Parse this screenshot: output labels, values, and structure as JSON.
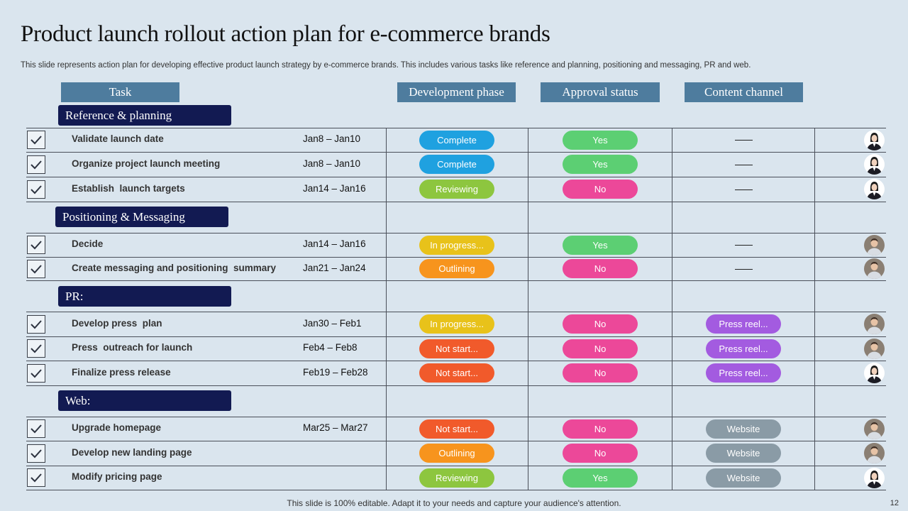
{
  "title": "Product launch rollout action plan for e-commerce brands",
  "subtitle": "This slide represents action plan for developing effective product launch strategy by e-commerce brands. This includes various tasks like reference and planning, positioning and messaging, PR and web.",
  "headers": {
    "task": "Task",
    "development_phase": "Development phase",
    "approval_status": "Approval status",
    "content_channel": "Content channel"
  },
  "sections": [
    {
      "label": "Reference & planning"
    },
    {
      "label": "Positioning & Messaging"
    },
    {
      "label": "PR:"
    },
    {
      "label": "Web:"
    }
  ],
  "tasks": [
    {
      "task": "Validate launch date",
      "dates": "Jan8 – Jan10",
      "phase": "Complete",
      "approval": "Yes",
      "channel": "",
      "avatar": "female"
    },
    {
      "task": "Organize project launch meeting",
      "dates": "Jan8 – Jan10",
      "phase": "Complete",
      "approval": "Yes",
      "channel": "",
      "avatar": "female"
    },
    {
      "task": "Establish  launch targets",
      "dates": "Jan14 – Jan16",
      "phase": "Reviewing",
      "approval": "No",
      "channel": "",
      "avatar": "female"
    },
    {
      "task": "Decide",
      "dates": "Jan14 – Jan16",
      "phase": "In progress...",
      "approval": "Yes",
      "channel": "",
      "avatar": "male"
    },
    {
      "task": "Create messaging and positioning  summary",
      "dates": "Jan21 – Jan24",
      "phase": "Outlining",
      "approval": "No",
      "channel": "",
      "avatar": "male"
    },
    {
      "task": "Develop press  plan",
      "dates": "Jan30 – Feb1",
      "phase": "In progress...",
      "approval": "No",
      "channel": "Press reel...",
      "avatar": "male"
    },
    {
      "task": "Press  outreach for launch",
      "dates": "Feb4 – Feb8",
      "phase": "Not start...",
      "approval": "No",
      "channel": "Press reel...",
      "avatar": "male"
    },
    {
      "task": "Finalize press release",
      "dates": "Feb19 – Feb28",
      "phase": "Not start...",
      "approval": "No",
      "channel": "Press reel...",
      "avatar": "female"
    },
    {
      "task": "Upgrade homepage",
      "dates": "Mar25 – Mar27",
      "phase": "Not start...",
      "approval": "No",
      "channel": "Website",
      "avatar": "male"
    },
    {
      "task": "Develop new landing page",
      "dates": "",
      "phase": "Outlining",
      "approval": "No",
      "channel": "Website",
      "avatar": "male"
    },
    {
      "task": "Modify pricing page",
      "dates": "",
      "phase": "Reviewing",
      "approval": "Yes",
      "channel": "Website",
      "avatar": "female"
    }
  ],
  "colors": {
    "Complete": "#1fa1e0",
    "Reviewing": "#8dc63f",
    "In progress...": "#e8c21a",
    "Outlining": "#f7941d",
    "Not start...": "#f15a2b",
    "Yes": "#5ccf73",
    "No": "#ec4899",
    "Press reel...": "#a35be0",
    "Website": "#8a9ba6"
  },
  "footer": "This slide is 100% editable. Adapt it to your needs and capture your audience's attention.",
  "page_number": "12"
}
